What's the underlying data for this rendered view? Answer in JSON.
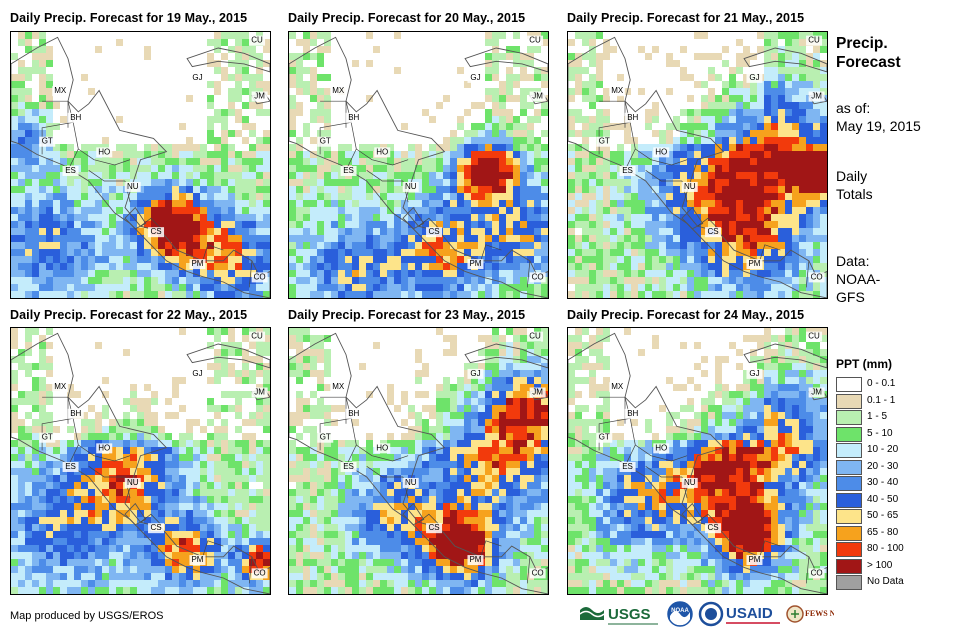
{
  "panels": [
    {
      "title": "Daily Precip. Forecast for 19 May., 2015"
    },
    {
      "title": "Daily Precip. Forecast for 20 May., 2015"
    },
    {
      "title": "Daily Precip. Forecast for 21 May., 2015"
    },
    {
      "title": "Daily Precip. Forecast for 22 May., 2015"
    },
    {
      "title": "Daily Precip. Forecast for 23 May., 2015"
    },
    {
      "title": "Daily Precip. Forecast for 24 May., 2015"
    }
  ],
  "region_labels": [
    "MX",
    "BH",
    "GT",
    "HO",
    "ES",
    "NU",
    "CS",
    "PM",
    "CU",
    "JM",
    "GJ",
    "CO"
  ],
  "sidebar": {
    "heading_line1": "Precip.",
    "heading_line2": "Forecast",
    "asof_label": "as of:",
    "asof_date": "May 19, 2015",
    "totals_line1": "Daily",
    "totals_line2": "Totals",
    "data_label": "Data:",
    "data_source1": "NOAA-",
    "data_source2": "GFS"
  },
  "legend": {
    "title": "PPT (mm)",
    "items": [
      {
        "label": "0 - 0.1",
        "color": "#ffffff"
      },
      {
        "label": "0.1 - 1",
        "color": "#e8d9b5"
      },
      {
        "label": "1 - 5",
        "color": "#b9efb1"
      },
      {
        "label": "5 - 10",
        "color": "#6ee36a"
      },
      {
        "label": "10 - 20",
        "color": "#c4ecfb"
      },
      {
        "label": "20 - 30",
        "color": "#7fb6f2"
      },
      {
        "label": "30 - 40",
        "color": "#4d8ce8"
      },
      {
        "label": "40 - 50",
        "color": "#2a5fdb"
      },
      {
        "label": "50 - 65",
        "color": "#fde48a"
      },
      {
        "label": "65 - 80",
        "color": "#f6a21d"
      },
      {
        "label": "80 - 100",
        "color": "#f23a0c"
      },
      {
        "label": "> 100",
        "color": "#a11616"
      },
      {
        "label": "No Data",
        "color": "#a0a0a0"
      }
    ]
  },
  "footer": {
    "credit": "Map produced by USGS/EROS",
    "logos": [
      "USGS",
      "NOAA",
      "USAID",
      "FEWS NET"
    ]
  }
}
